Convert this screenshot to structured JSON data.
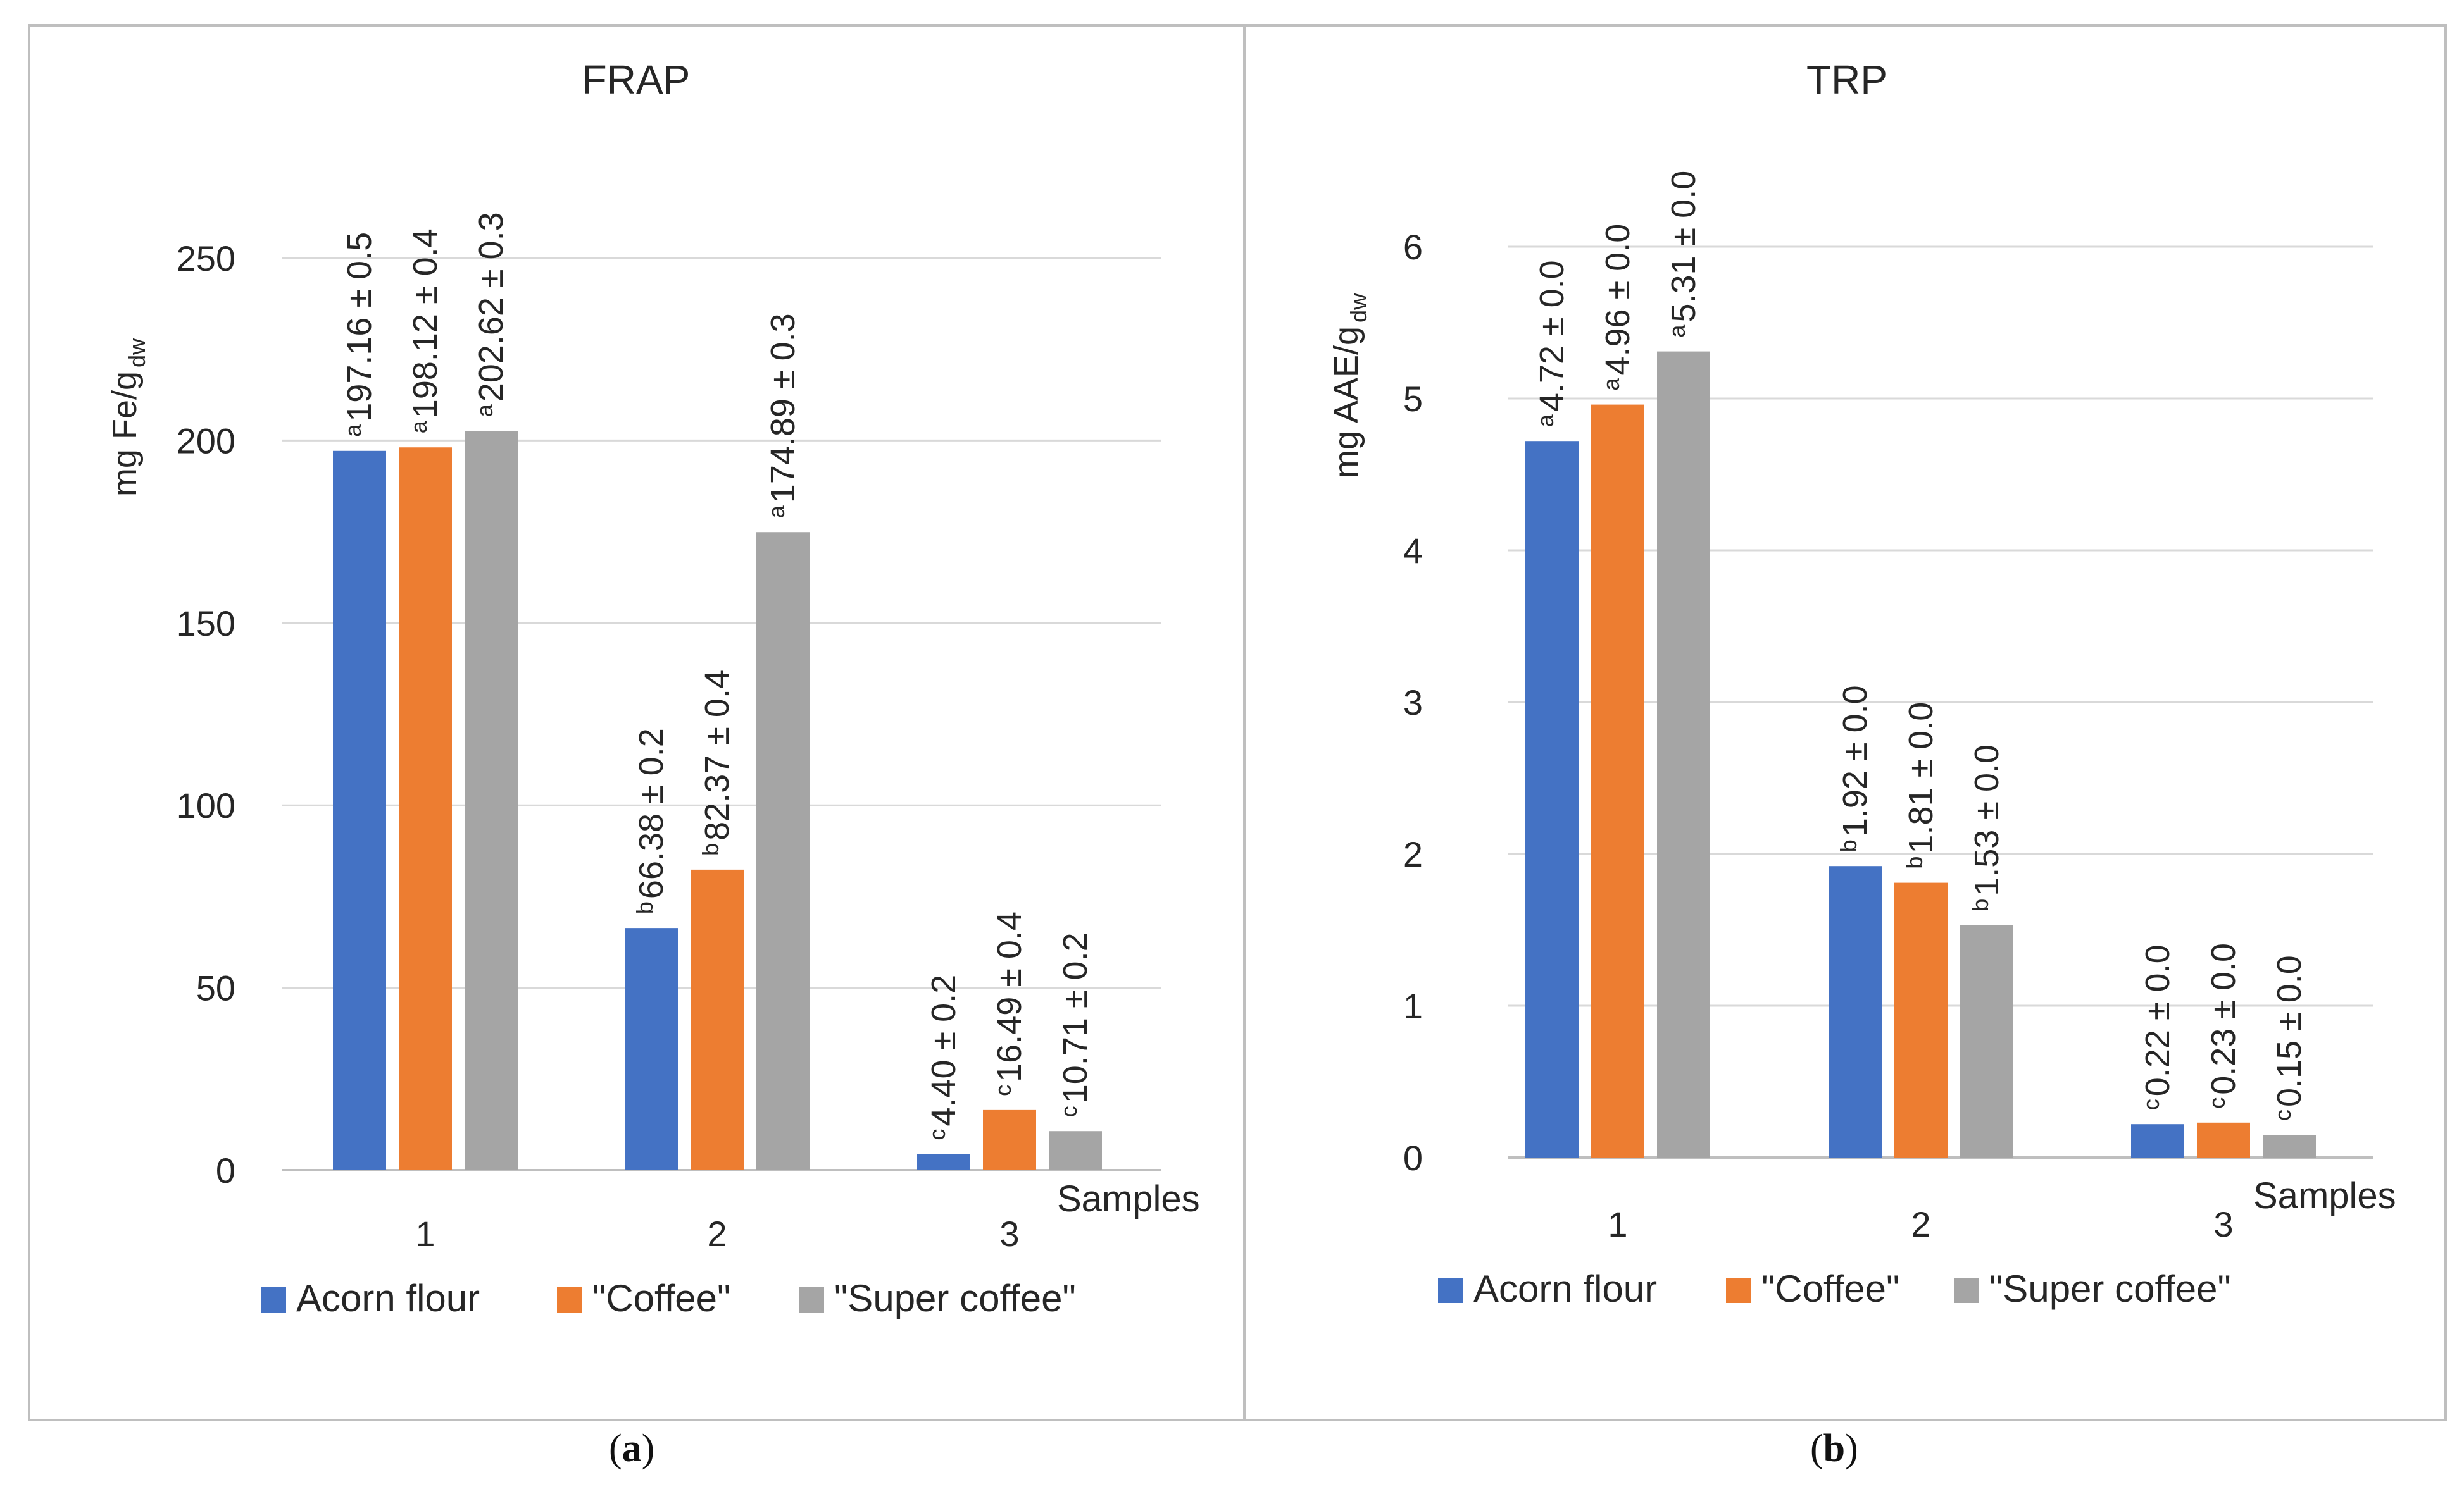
{
  "colors": {
    "acorn": "#4472C4",
    "coffee": "#ED7D31",
    "super": "#A5A5A5",
    "grid": "#D9D9D9",
    "frame": "#BFBFBF"
  },
  "panels": [
    {
      "id": "a",
      "caption_letter": "a",
      "chart_data": {
        "type": "bar",
        "title": "FRAP",
        "ylabel_main": "mg Fe/g",
        "ylabel_sub": "dw",
        "xlabel": "Samples",
        "categories": [
          "1",
          "2",
          "3"
        ],
        "ylim": [
          0,
          250
        ],
        "yticks": [
          0,
          50,
          100,
          150,
          200,
          250
        ],
        "series": [
          {
            "name": "Acorn flour",
            "color_key": "acorn",
            "values": [
              197.16,
              66.38,
              4.4
            ],
            "letters": [
              "a",
              "b",
              "c"
            ],
            "labels": [
              "197.16 ± 0.5",
              "66.38 ± 0.2",
              "4.40 ± 0.2"
            ]
          },
          {
            "name": "\"Coffee\"",
            "color_key": "coffee",
            "values": [
              198.12,
              82.37,
              16.49
            ],
            "letters": [
              "a",
              "b",
              "c"
            ],
            "labels": [
              "198.12 ± 0.4",
              "82.37 ± 0.4",
              "16.49 ± 0.4"
            ]
          },
          {
            "name": "\"Super coffee\"",
            "color_key": "super",
            "values": [
              202.62,
              174.89,
              10.71
            ],
            "letters": [
              "a",
              "a",
              "c"
            ],
            "labels": [
              "202.62 ± 0.3",
              "174.89 ± 0.3",
              "10.71 ± 0.2"
            ]
          }
        ],
        "legend_position": "bottom",
        "grid": true
      }
    },
    {
      "id": "b",
      "caption_letter": "b",
      "chart_data": {
        "type": "bar",
        "title": "TRP",
        "ylabel_main": "mg AAE/g",
        "ylabel_sub": "dw",
        "xlabel": "Samples",
        "categories": [
          "1",
          "2",
          "3"
        ],
        "ylim": [
          0,
          6
        ],
        "yticks": [
          0,
          1,
          2,
          3,
          4,
          5,
          6
        ],
        "series": [
          {
            "name": "Acorn flour",
            "color_key": "acorn",
            "values": [
              4.72,
              1.92,
              0.22
            ],
            "letters": [
              "a",
              "b",
              "c"
            ],
            "labels": [
              "4.72 ± 0.0",
              "1.92 ± 0.0",
              "0.22 ± 0.0"
            ]
          },
          {
            "name": "\"Coffee\"",
            "color_key": "coffee",
            "values": [
              4.96,
              1.81,
              0.23
            ],
            "letters": [
              "a",
              "b",
              "c"
            ],
            "labels": [
              "4.96 ± 0.0",
              "1.81 ± 0.0",
              "0.23 ± 0.0"
            ]
          },
          {
            "name": "\"Super coffee\"",
            "color_key": "super",
            "values": [
              5.31,
              1.53,
              0.15
            ],
            "letters": [
              "a",
              "b",
              "c"
            ],
            "labels": [
              "5.31 ± 0.0",
              "1.53 ± 0.0",
              "0.15 ± 0.0"
            ]
          }
        ],
        "legend_position": "bottom",
        "grid": true
      }
    }
  ]
}
